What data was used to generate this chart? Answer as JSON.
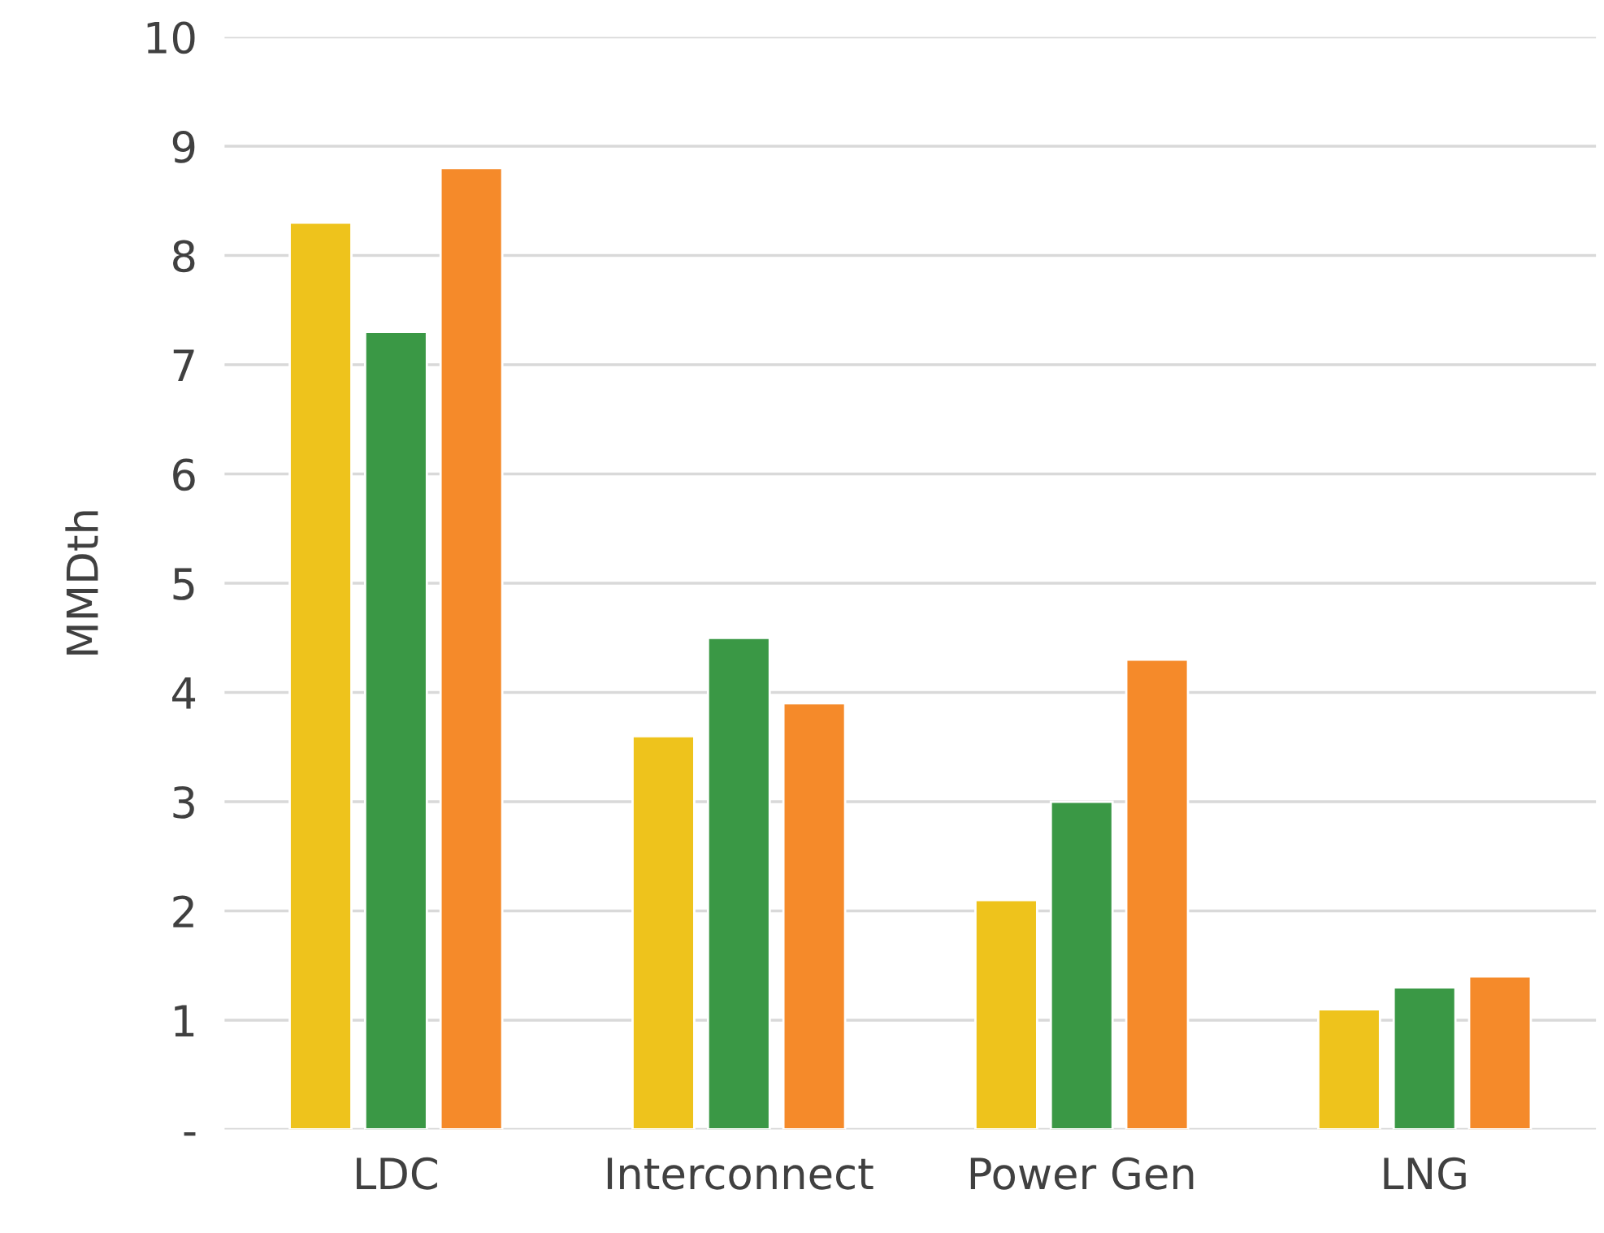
{
  "chart_data": {
    "type": "bar",
    "ylabel": "MMDth",
    "categories": [
      "LDC",
      "Interconnect",
      "Power Gen",
      "LNG"
    ],
    "series": [
      {
        "color": "#eec31c",
        "values": [
          8.3,
          3.6,
          2.1,
          1.1
        ]
      },
      {
        "color": "#3a9845",
        "values": [
          7.3,
          4.5,
          3.0,
          1.3
        ]
      },
      {
        "color": "#f58a2a",
        "values": [
          8.8,
          3.9,
          4.3,
          1.4
        ]
      }
    ],
    "ylim": [
      0,
      10
    ],
    "yticks": [
      {
        "value": 0,
        "label": "-"
      },
      1,
      2,
      3,
      4,
      5,
      6,
      7,
      8,
      9,
      10
    ],
    "grid": "y"
  }
}
